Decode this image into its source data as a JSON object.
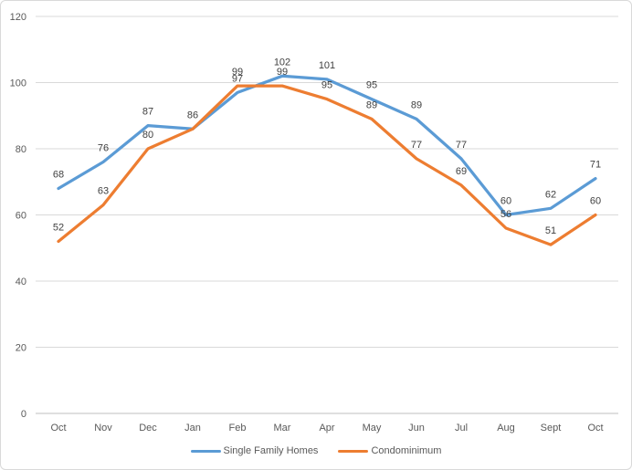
{
  "chart_data": {
    "type": "line",
    "title": "",
    "xlabel": "",
    "ylabel": "",
    "categories": [
      "Oct",
      "Nov",
      "Dec",
      "Jan",
      "Feb",
      "Mar",
      "Apr",
      "May",
      "Jun",
      "Jul",
      "Aug",
      "Sept",
      "Oct"
    ],
    "series": [
      {
        "name": "Single Family Homes",
        "color": "#5B9BD5",
        "values": [
          68,
          76,
          87,
          86,
          97,
          102,
          101,
          95,
          89,
          77,
          60,
          62,
          71
        ]
      },
      {
        "name": "Condominimum",
        "color": "#ED7D31",
        "values": [
          52,
          63,
          80,
          86,
          99,
          99,
          95,
          89,
          77,
          69,
          56,
          51,
          60
        ]
      }
    ],
    "ylim": [
      0,
      120
    ],
    "y_ticks": [
      0,
      20,
      40,
      60,
      80,
      100,
      120
    ],
    "grid": true,
    "data_labels": "above",
    "legend_position": "bottom"
  },
  "colors": {
    "background": "#FFFFFF",
    "chart_border": "#D9D9D9",
    "gridline": "#D9D9D9",
    "axis_line": "#BFBFBF",
    "axis_text": "#595959",
    "data_label_text": "#404040",
    "legend_text": "#595959"
  }
}
